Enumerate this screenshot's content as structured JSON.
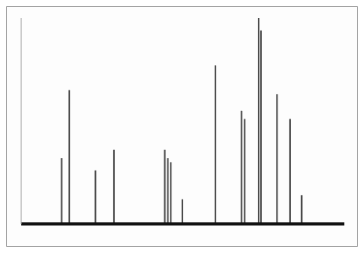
{
  "chart_data": {
    "type": "bar",
    "x": [
      192.2,
      187.0,
      169.2,
      156.6,
      122.0,
      119.9,
      117.9,
      110.0,
      87.5,
      69.7,
      67.6,
      58.1,
      56.5,
      45.6,
      36.7,
      28.8
    ],
    "values": [
      32,
      65,
      26,
      36,
      36,
      32,
      30,
      12,
      77,
      55,
      51,
      100,
      94,
      63,
      51,
      14
    ],
    "color": "#4a4a4a",
    "xlim": [
      220,
      0
    ],
    "ylim": [
      0,
      100
    ],
    "grid": false,
    "tick_labels": false
  }
}
